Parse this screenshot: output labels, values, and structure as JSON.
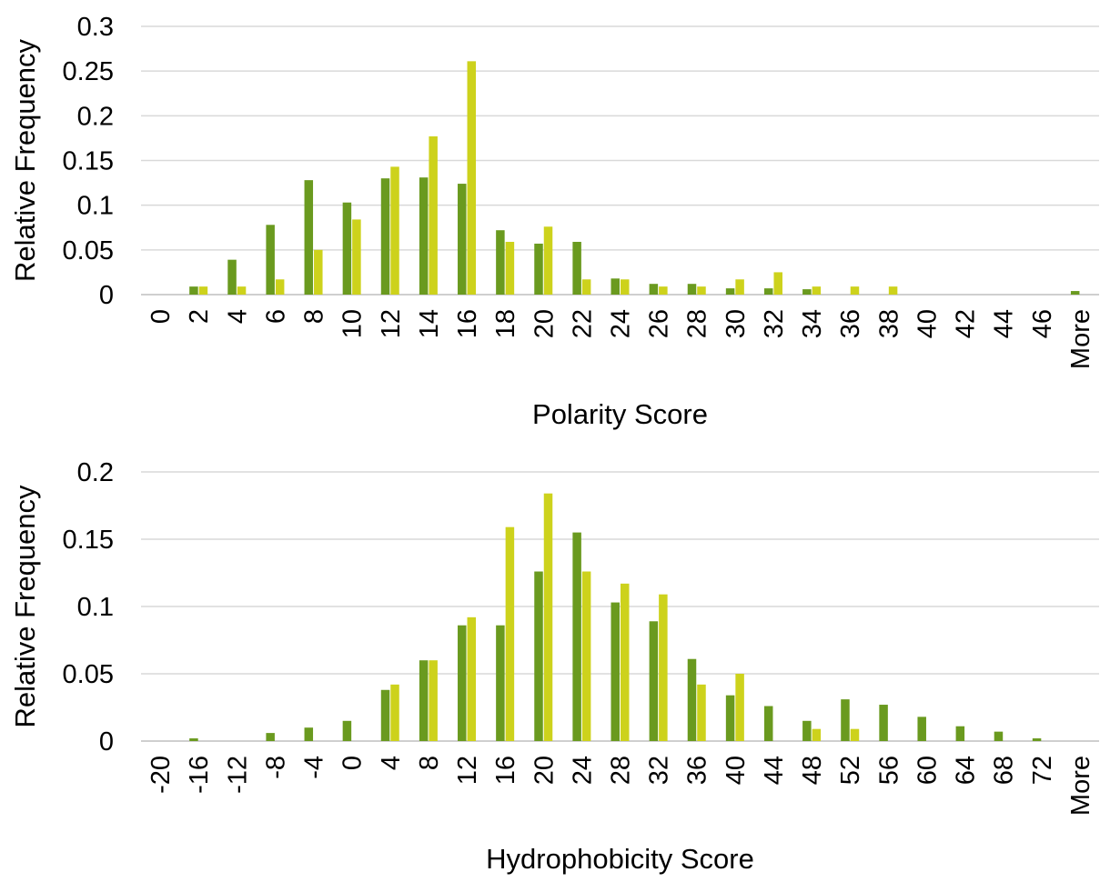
{
  "colors": {
    "series_a": "#6a9a1f",
    "series_b": "#cdd21c",
    "grid": "#d9d9d9",
    "axis": "#bfbfbf",
    "text": "#000000"
  },
  "chart_data": [
    {
      "type": "bar",
      "title": "",
      "xlabel": "Polarity Score",
      "ylabel": "Relative Frequency",
      "ylim": [
        0,
        0.3
      ],
      "yticks": [
        "0",
        "0.05",
        "0.1",
        "0.15",
        "0.2",
        "0.25",
        "0.3"
      ],
      "grid": true,
      "legend": "none",
      "categories": [
        "0",
        "2",
        "4",
        "6",
        "8",
        "10",
        "12",
        "14",
        "16",
        "18",
        "20",
        "22",
        "24",
        "26",
        "28",
        "30",
        "32",
        "34",
        "36",
        "38",
        "40",
        "42",
        "44",
        "46",
        "More"
      ],
      "series": [
        {
          "values": [
            0,
            0.009,
            0.039,
            0.078,
            0.128,
            0.103,
            0.13,
            0.131,
            0.124,
            0.072,
            0.057,
            0.059,
            0.018,
            0.012,
            0.012,
            0.007,
            0.007,
            0.006,
            0,
            0,
            0,
            0,
            0,
            0,
            0.004
          ]
        },
        {
          "values": [
            0,
            0.009,
            0.009,
            0.017,
            0.05,
            0.084,
            0.143,
            0.177,
            0.261,
            0.059,
            0.076,
            0.017,
            0.017,
            0.009,
            0.009,
            0.017,
            0.025,
            0.009,
            0.009,
            0.009,
            0,
            0,
            0,
            0,
            0
          ]
        }
      ]
    },
    {
      "type": "bar",
      "title": "",
      "xlabel": "Hydrophobicity Score",
      "ylabel": "Relative Frequency",
      "ylim": [
        0,
        0.2
      ],
      "yticks": [
        "0",
        "0.05",
        "0.1",
        "0.15",
        "0.2"
      ],
      "grid": true,
      "legend": "none",
      "categories": [
        "-20",
        "-16",
        "-12",
        "-8",
        "-4",
        "0",
        "4",
        "8",
        "12",
        "16",
        "20",
        "24",
        "28",
        "32",
        "36",
        "40",
        "44",
        "48",
        "52",
        "56",
        "60",
        "64",
        "68",
        "72",
        "More"
      ],
      "series": [
        {
          "values": [
            0,
            0.002,
            0,
            0.006,
            0.01,
            0.015,
            0.038,
            0.06,
            0.086,
            0.086,
            0.126,
            0.155,
            0.103,
            0.089,
            0.061,
            0.034,
            0.026,
            0.015,
            0.031,
            0.027,
            0.018,
            0.011,
            0.007,
            0.002,
            0
          ]
        },
        {
          "values": [
            0,
            0,
            0,
            0,
            0,
            0,
            0.042,
            0.06,
            0.092,
            0.159,
            0.184,
            0.126,
            0.117,
            0.109,
            0.042,
            0.05,
            0,
            0.009,
            0.009,
            0,
            0,
            0,
            0,
            0,
            0
          ]
        }
      ]
    }
  ]
}
